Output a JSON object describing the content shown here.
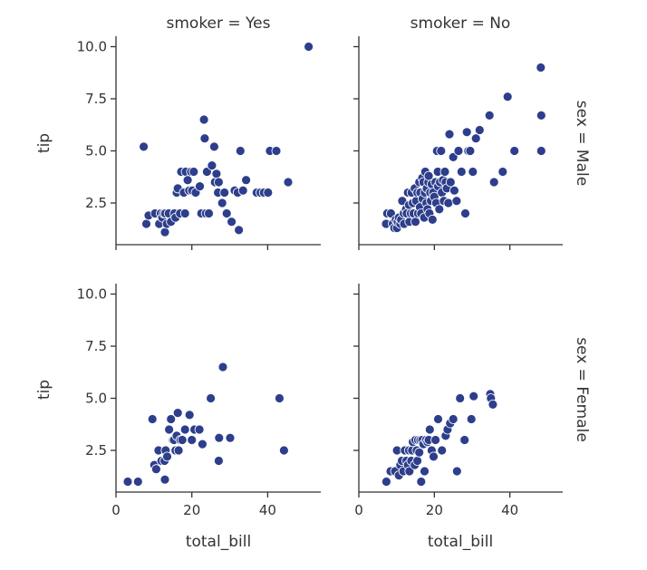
{
  "chart_data": {
    "type": "scatter",
    "title": "",
    "xlabel": "total_bill",
    "ylabel": "tip",
    "xlim": [
      0,
      54
    ],
    "ylim": [
      0.5,
      10.5
    ],
    "x_ticks": [
      0,
      20,
      40
    ],
    "y_ticks": [
      2.5,
      5.0,
      7.5,
      10.0
    ],
    "x_tick_labels": [
      "0",
      "20",
      "40"
    ],
    "y_tick_labels": [
      "2.5",
      "5.0",
      "7.5",
      "10.0"
    ],
    "marker_color": "#2d3e8c",
    "marker_edge_color": "#ffffff",
    "grid": false,
    "col_titles": [
      "smoker = Yes",
      "smoker = No"
    ],
    "row_titles": [
      "sex = Male",
      "sex = Female"
    ],
    "panels": [
      {
        "smoker": "Yes",
        "sex": "Male",
        "points": [
          [
            7.3,
            5.2
          ],
          [
            8.0,
            1.5
          ],
          [
            8.6,
            1.9
          ],
          [
            10.3,
            2.0
          ],
          [
            11.4,
            1.5
          ],
          [
            11.8,
            2.0
          ],
          [
            12.2,
            1.8
          ],
          [
            12.6,
            2.0
          ],
          [
            12.9,
            1.1
          ],
          [
            13.0,
            2.0
          ],
          [
            13.4,
            1.5
          ],
          [
            13.9,
            2.0
          ],
          [
            14.5,
            1.6
          ],
          [
            15.4,
            2.0
          ],
          [
            15.7,
            1.8
          ],
          [
            16.0,
            3.0
          ],
          [
            16.3,
            3.2
          ],
          [
            16.9,
            2.0
          ],
          [
            17.2,
            4.0
          ],
          [
            17.9,
            3.0
          ],
          [
            18.2,
            2.0
          ],
          [
            18.4,
            4.0
          ],
          [
            18.9,
            3.6
          ],
          [
            19.3,
            3.1
          ],
          [
            19.8,
            4.0
          ],
          [
            20.1,
            3.1
          ],
          [
            20.5,
            4.0
          ],
          [
            21.0,
            3.0
          ],
          [
            22.1,
            3.3
          ],
          [
            22.5,
            2.0
          ],
          [
            23.2,
            6.5
          ],
          [
            23.4,
            5.6
          ],
          [
            23.7,
            2.0
          ],
          [
            24.0,
            4.0
          ],
          [
            24.5,
            2.0
          ],
          [
            25.3,
            4.3
          ],
          [
            25.9,
            5.2
          ],
          [
            26.1,
            3.5
          ],
          [
            26.5,
            3.9
          ],
          [
            26.9,
            3.0
          ],
          [
            27.1,
            3.5
          ],
          [
            28.0,
            2.5
          ],
          [
            28.6,
            3.0
          ],
          [
            29.2,
            2.0
          ],
          [
            30.5,
            1.6
          ],
          [
            31.3,
            3.1
          ],
          [
            32.1,
            3.0
          ],
          [
            32.4,
            1.2
          ],
          [
            32.8,
            5.0
          ],
          [
            33.5,
            3.1
          ],
          [
            34.3,
            3.6
          ],
          [
            37.1,
            3.0
          ],
          [
            38.1,
            3.0
          ],
          [
            39.0,
            3.0
          ],
          [
            40.1,
            3.0
          ],
          [
            40.6,
            5.0
          ],
          [
            42.3,
            5.0
          ],
          [
            45.4,
            3.5
          ],
          [
            50.8,
            10.0
          ]
        ]
      },
      {
        "smoker": "No",
        "sex": "Male",
        "points": [
          [
            7.2,
            1.5
          ],
          [
            7.5,
            2.0
          ],
          [
            8.5,
            2.0
          ],
          [
            9.0,
            1.5
          ],
          [
            9.4,
            1.3
          ],
          [
            9.8,
            1.7
          ],
          [
            10.1,
            1.3
          ],
          [
            10.3,
            1.6
          ],
          [
            10.6,
            1.8
          ],
          [
            11.0,
            1.5
          ],
          [
            11.2,
            1.7
          ],
          [
            11.5,
            2.6
          ],
          [
            11.9,
            2.0
          ],
          [
            12.0,
            1.5
          ],
          [
            12.5,
            2.2
          ],
          [
            12.7,
            2.0
          ],
          [
            13.0,
            3.0
          ],
          [
            13.3,
            2.4
          ],
          [
            13.4,
            1.6
          ],
          [
            13.8,
            2.0
          ],
          [
            14.0,
            3.0
          ],
          [
            14.3,
            2.5
          ],
          [
            14.5,
            2.0
          ],
          [
            14.8,
            3.2
          ],
          [
            15.0,
            1.6
          ],
          [
            15.2,
            2.6
          ],
          [
            15.5,
            3.0
          ],
          [
            15.7,
            2.0
          ],
          [
            16.0,
            3.5
          ],
          [
            16.2,
            2.3
          ],
          [
            16.3,
            3.0
          ],
          [
            16.5,
            2.0
          ],
          [
            16.8,
            3.7
          ],
          [
            16.9,
            2.7
          ],
          [
            17.1,
            3.5
          ],
          [
            17.3,
            1.8
          ],
          [
            17.5,
            3.0
          ],
          [
            17.6,
            4.0
          ],
          [
            17.9,
            2.5
          ],
          [
            18.0,
            3.2
          ],
          [
            18.2,
            2.2
          ],
          [
            18.4,
            3.5
          ],
          [
            18.5,
            3.8
          ],
          [
            18.7,
            2.0
          ],
          [
            18.9,
            3.0
          ],
          [
            19.1,
            2.6
          ],
          [
            19.3,
            3.4
          ],
          [
            19.5,
            1.7
          ],
          [
            19.7,
            3.0
          ],
          [
            20.0,
            2.8
          ],
          [
            20.3,
            3.5
          ],
          [
            20.5,
            2.5
          ],
          [
            20.7,
            5.0
          ],
          [
            20.9,
            4.0
          ],
          [
            21.0,
            3.3
          ],
          [
            21.3,
            2.2
          ],
          [
            21.5,
            3.5
          ],
          [
            21.8,
            5.0
          ],
          [
            22.0,
            3.0
          ],
          [
            22.3,
            3.6
          ],
          [
            22.5,
            2.6
          ],
          [
            22.8,
            4.0
          ],
          [
            23.0,
            3.5
          ],
          [
            23.3,
            3.2
          ],
          [
            23.7,
            2.5
          ],
          [
            24.0,
            5.8
          ],
          [
            24.3,
            3.5
          ],
          [
            25.0,
            4.7
          ],
          [
            25.3,
            3.1
          ],
          [
            25.9,
            2.6
          ],
          [
            26.4,
            5.0
          ],
          [
            27.2,
            4.0
          ],
          [
            28.2,
            2.0
          ],
          [
            28.6,
            5.9
          ],
          [
            29.0,
            5.0
          ],
          [
            29.5,
            5.0
          ],
          [
            30.2,
            4.0
          ],
          [
            31.0,
            5.6
          ],
          [
            32.0,
            6.0
          ],
          [
            34.6,
            6.7
          ],
          [
            35.8,
            3.5
          ],
          [
            38.1,
            4.0
          ],
          [
            39.4,
            7.6
          ],
          [
            41.2,
            5.0
          ],
          [
            48.2,
            9.0
          ],
          [
            48.3,
            6.7
          ],
          [
            48.3,
            5.0
          ]
        ]
      },
      {
        "smoker": "Yes",
        "sex": "Female",
        "points": [
          [
            3.1,
            1.0
          ],
          [
            5.8,
            1.0
          ],
          [
            9.6,
            4.0
          ],
          [
            10.1,
            1.8
          ],
          [
            10.6,
            1.6
          ],
          [
            11.2,
            2.5
          ],
          [
            12.0,
            2.0
          ],
          [
            12.8,
            2.0
          ],
          [
            12.9,
            1.1
          ],
          [
            13.1,
            2.5
          ],
          [
            13.5,
            2.2
          ],
          [
            14.0,
            3.5
          ],
          [
            14.5,
            4.0
          ],
          [
            15.0,
            3.0
          ],
          [
            15.3,
            3.0
          ],
          [
            15.7,
            2.5
          ],
          [
            16.0,
            3.2
          ],
          [
            16.3,
            4.3
          ],
          [
            16.5,
            2.5
          ],
          [
            17.0,
            3.0
          ],
          [
            17.5,
            3.0
          ],
          [
            18.2,
            3.5
          ],
          [
            19.4,
            4.2
          ],
          [
            20.0,
            3.0
          ],
          [
            20.7,
            3.5
          ],
          [
            22.0,
            3.5
          ],
          [
            22.8,
            2.8
          ],
          [
            25.0,
            5.0
          ],
          [
            27.1,
            2.0
          ],
          [
            27.2,
            3.1
          ],
          [
            28.2,
            6.5
          ],
          [
            30.1,
            3.1
          ],
          [
            43.1,
            5.0
          ],
          [
            44.3,
            2.5
          ]
        ]
      },
      {
        "smoker": "No",
        "sex": "Female",
        "points": [
          [
            7.3,
            1.0
          ],
          [
            8.4,
            1.5
          ],
          [
            9.6,
            1.5
          ],
          [
            10.1,
            2.5
          ],
          [
            10.6,
            1.3
          ],
          [
            11.0,
            1.8
          ],
          [
            11.4,
            2.0
          ],
          [
            11.8,
            1.5
          ],
          [
            12.2,
            2.5
          ],
          [
            12.6,
            2.0
          ],
          [
            13.0,
            1.8
          ],
          [
            13.3,
            2.5
          ],
          [
            13.4,
            1.5
          ],
          [
            13.9,
            2.0
          ],
          [
            14.1,
            2.5
          ],
          [
            14.3,
            2.9
          ],
          [
            14.8,
            1.8
          ],
          [
            15.0,
            3.0
          ],
          [
            15.3,
            2.5
          ],
          [
            15.5,
            2.0
          ],
          [
            15.7,
            3.0
          ],
          [
            16.0,
            2.4
          ],
          [
            16.3,
            3.0
          ],
          [
            16.5,
            1.0
          ],
          [
            16.8,
            3.0
          ],
          [
            17.1,
            2.8
          ],
          [
            17.4,
            1.5
          ],
          [
            17.8,
            3.0
          ],
          [
            18.2,
            2.9
          ],
          [
            18.5,
            3.0
          ],
          [
            18.8,
            3.5
          ],
          [
            19.3,
            2.5
          ],
          [
            19.8,
            2.2
          ],
          [
            20.3,
            3.0
          ],
          [
            21.0,
            4.0
          ],
          [
            22.0,
            2.5
          ],
          [
            23.0,
            3.2
          ],
          [
            23.5,
            3.5
          ],
          [
            24.2,
            3.8
          ],
          [
            25.0,
            4.0
          ],
          [
            26.0,
            1.5
          ],
          [
            26.8,
            5.0
          ],
          [
            28.0,
            3.0
          ],
          [
            29.8,
            4.0
          ],
          [
            30.4,
            5.1
          ],
          [
            34.8,
            5.2
          ],
          [
            35.0,
            5.0
          ],
          [
            35.5,
            4.7
          ]
        ]
      }
    ]
  }
}
